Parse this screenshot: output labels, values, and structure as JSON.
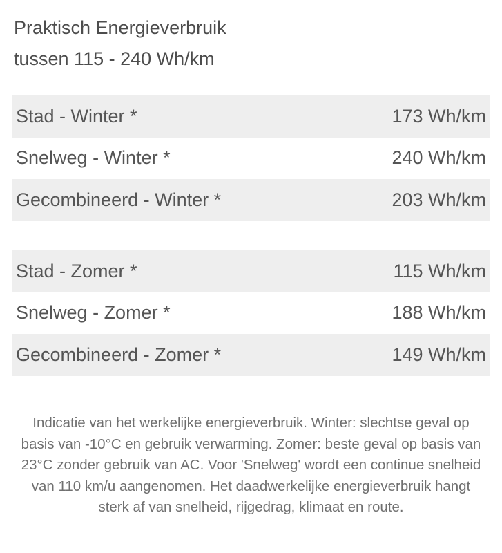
{
  "header": {
    "title_line1": "Praktisch Energieverbruik",
    "title_line2": "tussen 115 - 240 Wh/km"
  },
  "winter": [
    {
      "label": "Stad - Winter *",
      "value": "173 Wh/km"
    },
    {
      "label": "Snelweg - Winter *",
      "value": "240 Wh/km"
    },
    {
      "label": "Gecombineerd - Winter *",
      "value": "203 Wh/km"
    }
  ],
  "summer": [
    {
      "label": "Stad - Zomer *",
      "value": "115 Wh/km"
    },
    {
      "label": "Snelweg - Zomer *",
      "value": "188 Wh/km"
    },
    {
      "label": "Gecombineerd - Zomer *",
      "value": "149 Wh/km"
    }
  ],
  "footnote": "Indicatie van het werkelijke energieverbruik. Winter: slechtse geval op basis van -10°C en gebruik verwarming. Zomer: beste geval op basis van 23°C zonder gebruik van AC. Voor 'Snelweg' wordt een continue snelheid van 110 km/u aangenomen. Het daadwerkelijke energieverbruik hangt sterk af van snelheid, rijgedrag, klimaat en route.",
  "colors": {
    "row_stripe": "#eeeeee",
    "text": "#555555",
    "note": "#707070"
  }
}
